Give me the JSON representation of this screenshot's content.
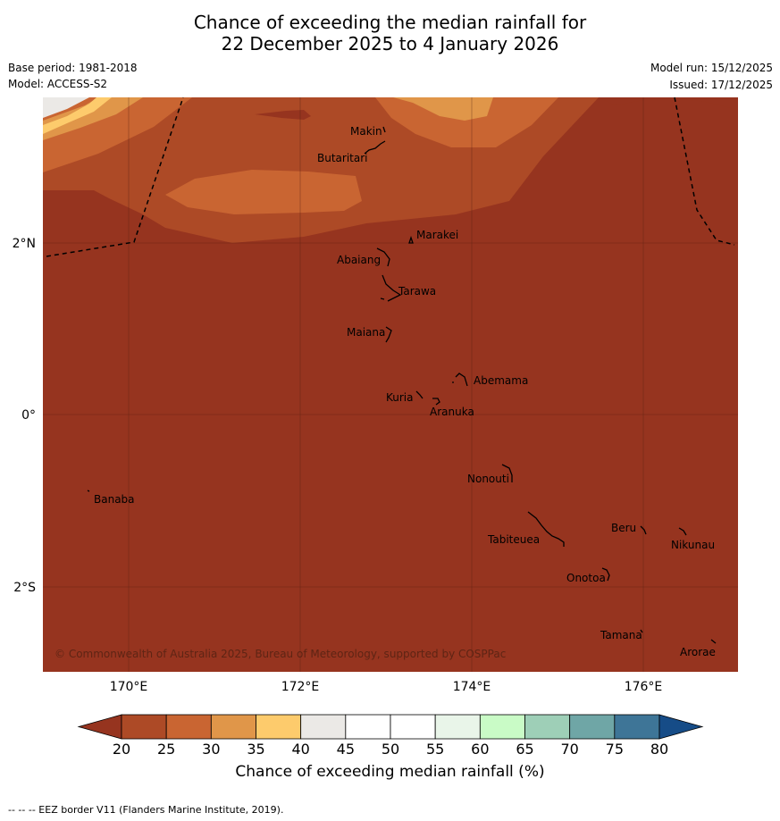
{
  "title": {
    "line1": "Chance of exceeding the median rainfall for",
    "line2": "22 December 2025 to 4 January 2026"
  },
  "meta": {
    "base_period": "Base period: 1981-2018",
    "model": "Model: ACCESS-S2",
    "model_run": "Model run: 15/12/2025",
    "issued": "Issued: 17/12/2025"
  },
  "map": {
    "lat_labels": [
      "2°N",
      "0°",
      "2°S"
    ],
    "lon_labels": [
      "170°E",
      "172°E",
      "174°E",
      "176°E"
    ],
    "copyright": "© Commonwealth of Australia 2025, Bureau of Meteorology, supported by COSPPac",
    "islands": [
      "Makin",
      "Butaritari",
      "Marakei",
      "Abaiang",
      "Tarawa",
      "Maiana",
      "Abemama",
      "Kuria",
      "Aranuka",
      "Nonouti",
      "Banaba",
      "Beru",
      "Nikunau",
      "Tabiteuea",
      "Onotoa",
      "Tamana",
      "Arorae"
    ],
    "colors": {
      "below_20": "#96341f",
      "20_25": "#ad4a26",
      "25_30": "#c96532",
      "30_35": "#e09649",
      "35_40": "#fdcb6c",
      "40_45": "#ebe9e6"
    }
  },
  "colorbar": {
    "ticks": [
      "20",
      "25",
      "30",
      "35",
      "40",
      "45",
      "50",
      "55",
      "60",
      "65",
      "70",
      "75",
      "80"
    ],
    "colors": [
      "#ad4a26",
      "#c96532",
      "#e09649",
      "#fdcb6c",
      "#ebe9e6",
      "#ffffff",
      "#ffffff",
      "#e9f5e9",
      "#c9fbc6",
      "#9ecfb7",
      "#6fa6a6",
      "#3e7597"
    ],
    "low_color": "#96341f",
    "high_color": "#164c87",
    "label": "Chance of exceeding median rainfall (%)"
  },
  "footnote": "--  --  -- EEZ border V11 (Flanders Marine Institute, 2019)."
}
